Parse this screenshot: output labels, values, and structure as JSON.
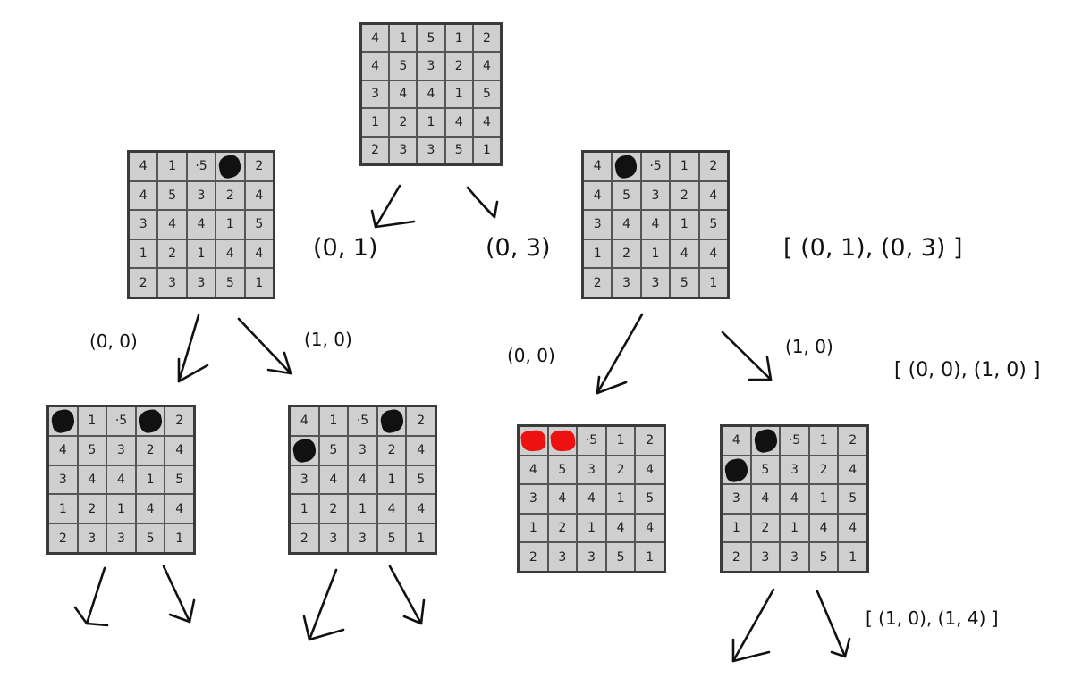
{
  "boards": {
    "root": {
      "rows": [
        [
          "4",
          "1",
          "5",
          "1",
          "2"
        ],
        [
          "4",
          "5",
          "3",
          "2",
          "4"
        ],
        [
          "3",
          "4",
          "4",
          "1",
          "5"
        ],
        [
          "1",
          "2",
          "1",
          "4",
          "4"
        ],
        [
          "2",
          "3",
          "3",
          "5",
          "1"
        ]
      ],
      "shaded": [],
      "red": []
    },
    "a": {
      "rows": [
        [
          "4",
          "1",
          "·5",
          "",
          "2"
        ],
        [
          "4",
          "5",
          "3",
          "2",
          "4"
        ],
        [
          "3",
          "4",
          "4",
          "1",
          "5"
        ],
        [
          "1",
          "2",
          "1",
          "4",
          "4"
        ],
        [
          "2",
          "3",
          "3",
          "5",
          "1"
        ]
      ],
      "shaded": [
        [
          0,
          3
        ]
      ],
      "red": []
    },
    "b": {
      "rows": [
        [
          "4",
          "",
          "·5",
          "1",
          "2"
        ],
        [
          "4",
          "5",
          "3",
          "2",
          "4"
        ],
        [
          "3",
          "4",
          "4",
          "1",
          "5"
        ],
        [
          "1",
          "2",
          "1",
          "4",
          "4"
        ],
        [
          "2",
          "3",
          "3",
          "5",
          "1"
        ]
      ],
      "shaded": [
        [
          0,
          1
        ]
      ],
      "red": []
    },
    "aa": {
      "rows": [
        [
          "",
          "1",
          "·5",
          "",
          "2"
        ],
        [
          "4",
          "5",
          "3",
          "2",
          "4"
        ],
        [
          "3",
          "4",
          "4",
          "1",
          "5"
        ],
        [
          "1",
          "2",
          "1",
          "4",
          "4"
        ],
        [
          "2",
          "3",
          "3",
          "5",
          "1"
        ]
      ],
      "shaded": [
        [
          0,
          0
        ],
        [
          0,
          3
        ]
      ],
      "red": []
    },
    "ab": {
      "rows": [
        [
          "4",
          "1",
          "·5",
          "",
          "2"
        ],
        [
          "",
          "5",
          "3",
          "2",
          "4"
        ],
        [
          "3",
          "4",
          "4",
          "1",
          "5"
        ],
        [
          "1",
          "2",
          "1",
          "4",
          "4"
        ],
        [
          "2",
          "3",
          "3",
          "5",
          "1"
        ]
      ],
      "shaded": [
        [
          0,
          3
        ],
        [
          1,
          0
        ]
      ],
      "red": []
    },
    "ba": {
      "rows": [
        [
          "",
          "",
          "·5",
          "1",
          "2"
        ],
        [
          "4",
          "5",
          "3",
          "2",
          "4"
        ],
        [
          "3",
          "4",
          "4",
          "1",
          "5"
        ],
        [
          "1",
          "2",
          "1",
          "4",
          "4"
        ],
        [
          "2",
          "3",
          "3",
          "5",
          "1"
        ]
      ],
      "shaded": [],
      "red": [
        [
          0,
          0
        ],
        [
          0,
          1
        ]
      ]
    },
    "bb": {
      "rows": [
        [
          "4",
          "",
          "·5",
          "1",
          "2"
        ],
        [
          "",
          "5",
          "3",
          "2",
          "4"
        ],
        [
          "3",
          "4",
          "4",
          "1",
          "5"
        ],
        [
          "1",
          "2",
          "1",
          "4",
          "4"
        ],
        [
          "2",
          "3",
          "3",
          "5",
          "1"
        ]
      ],
      "shaded": [
        [
          0,
          1
        ],
        [
          1,
          0
        ]
      ],
      "red": []
    }
  },
  "labels": {
    "root_left": "(0, 1)",
    "root_right": "(0, 3)",
    "root_list": "[ (0, 1), (0, 3) ]",
    "a_left": "(0, 0)",
    "a_right": "(1, 0)",
    "b_left": "(0, 0)",
    "b_right": "(1, 0)",
    "b_list": "[ (0, 0), (1, 0) ]",
    "bb_list": "[ (1, 0), (1, 4) ]"
  }
}
